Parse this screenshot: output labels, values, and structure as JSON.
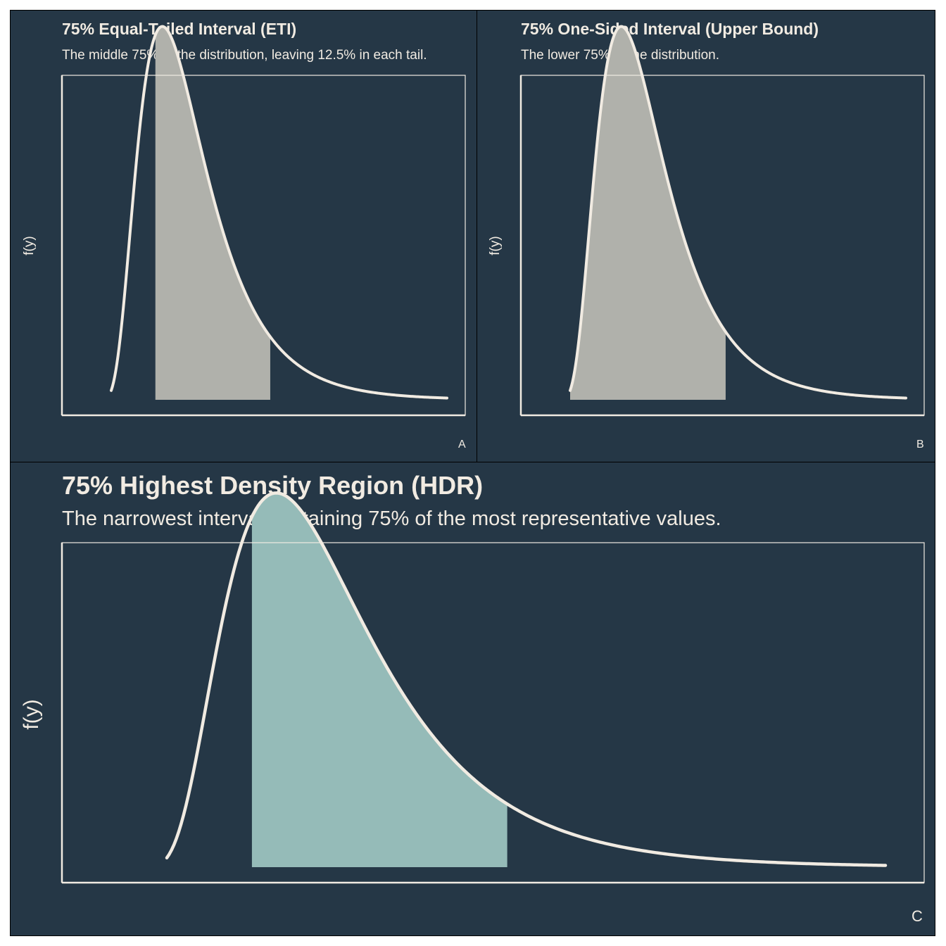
{
  "colors": {
    "background": "#253746",
    "curve": "#f1ebe2",
    "fill_interval": "#b0b1ab",
    "fill_hdr": "#95bbb8",
    "frame": "#f1ebe2"
  },
  "chart_data": [
    {
      "type": "area",
      "tag": "A",
      "title": "75% Equal-Tailed Interval (ETI)",
      "subtitle": "The middle 75% of the distribution, leaving 12.5% in each tail.",
      "xlabel": "",
      "ylabel": "f(y)",
      "distribution": "lognormal",
      "x_range": [
        0.2,
        4.0
      ],
      "y_range": [
        0,
        0.75
      ],
      "shaded_interval": [
        0.7,
        2.0
      ],
      "grid": false,
      "legend": "none"
    },
    {
      "type": "area",
      "tag": "B",
      "title": "75% One-Sided Interval (Upper Bound)",
      "subtitle": "The lower 75% of the distribution.",
      "xlabel": "",
      "ylabel": "f(y)",
      "distribution": "lognormal",
      "x_range": [
        0.2,
        4.0
      ],
      "y_range": [
        0,
        0.75
      ],
      "shaded_interval": [
        0.2,
        1.96
      ],
      "grid": false,
      "legend": "none"
    },
    {
      "type": "area",
      "tag": "C",
      "title": "75% Highest Density Region (HDR)",
      "subtitle": "The narrowest interval containing 75% of the most representative values.",
      "xlabel": "",
      "ylabel": "f(y)",
      "distribution": "lognormal",
      "x_range": [
        0.2,
        4.0
      ],
      "y_range": [
        0,
        0.75
      ],
      "shaded_interval": [
        0.65,
        2.0
      ],
      "grid": false,
      "legend": "none"
    }
  ]
}
